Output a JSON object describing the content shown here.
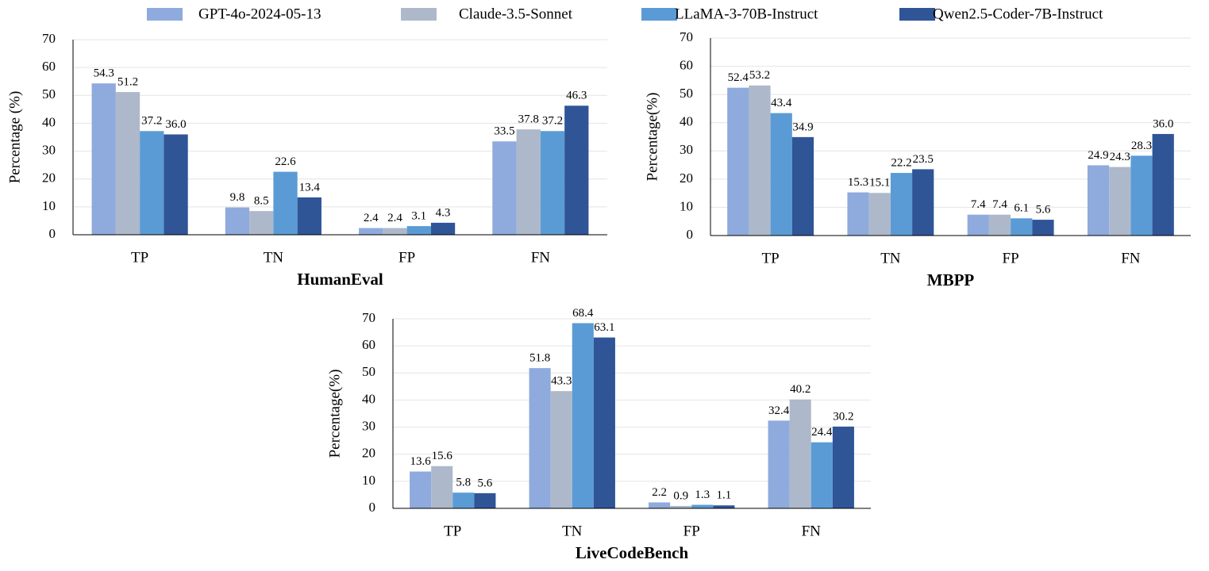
{
  "chart_data": [
    {
      "type": "bar",
      "title": "HumanEval",
      "y_label": "Percentage (%)",
      "categories": [
        "TP",
        "TN",
        "FP",
        "FN"
      ],
      "series": [
        {
          "name": "GPT-4o-2024-05-13",
          "color": "#8faadc",
          "values": [
            54.3,
            9.8,
            2.4,
            33.5
          ]
        },
        {
          "name": "Claude-3.5-Sonnet",
          "color": "#adb9ca",
          "values": [
            51.2,
            8.5,
            2.4,
            37.8
          ]
        },
        {
          "name": "LLaMA-3-70B-Instruct",
          "color": "#5b9bd5",
          "values": [
            37.2,
            22.6,
            3.1,
            37.2
          ]
        },
        {
          "name": "Qwen2.5-Coder-7B-Instruct",
          "color": "#2f5597",
          "values": [
            36,
            13.4,
            4.3,
            46.3
          ],
          "value_labels": [
            "36.0",
            "13.4",
            "4.3",
            "46.3"
          ]
        }
      ],
      "ylim": [
        0,
        70
      ],
      "yticks": [
        0,
        10,
        20,
        30,
        40,
        50,
        60,
        70
      ],
      "grid": true
    },
    {
      "type": "bar",
      "title": "MBPP",
      "y_label": "Percentage(%)",
      "categories": [
        "TP",
        "TN",
        "FP",
        "FN"
      ],
      "series": [
        {
          "name": "GPT-4o-2024-05-13",
          "color": "#8faadc",
          "values": [
            52.4,
            15.3,
            7.4,
            24.9
          ]
        },
        {
          "name": "Claude-3.5-Sonnet",
          "color": "#adb9ca",
          "values": [
            53.2,
            15.1,
            7.4,
            24.3
          ]
        },
        {
          "name": "LLaMA-3-70B-Instruct",
          "color": "#5b9bd5",
          "values": [
            43.4,
            22.2,
            6.1,
            28.3
          ]
        },
        {
          "name": "Qwen2.5-Coder-7B-Instruct",
          "color": "#2f5597",
          "values": [
            34.9,
            23.5,
            5.6,
            36
          ],
          "value_labels": [
            "34.9",
            "23.5",
            "5.6",
            "36.0"
          ]
        }
      ],
      "ylim": [
        0,
        70
      ],
      "yticks": [
        0,
        10,
        20,
        30,
        40,
        50,
        60,
        70
      ],
      "grid": true
    },
    {
      "type": "bar",
      "title": "LiveCodeBench",
      "y_label": "Percentage(%)",
      "categories": [
        "TP",
        "TN",
        "FP",
        "FN"
      ],
      "series": [
        {
          "name": "GPT-4o-2024-05-13",
          "color": "#8faadc",
          "values": [
            13.6,
            51.8,
            2.2,
            32.4
          ]
        },
        {
          "name": "Claude-3.5-Sonnet",
          "color": "#adb9ca",
          "values": [
            15.6,
            43.3,
            0.9,
            40.2
          ]
        },
        {
          "name": "LLaMA-3-70B-Instruct",
          "color": "#5b9bd5",
          "values": [
            5.8,
            68.4,
            1.3,
            24.4
          ]
        },
        {
          "name": "Qwen2.5-Coder-7B-Instruct",
          "color": "#2f5597",
          "values": [
            5.6,
            63.1,
            1.1,
            30.2
          ]
        }
      ],
      "ylim": [
        0,
        70
      ],
      "yticks": [
        0,
        10,
        20,
        30,
        40,
        50,
        60,
        70
      ],
      "grid": true
    }
  ]
}
